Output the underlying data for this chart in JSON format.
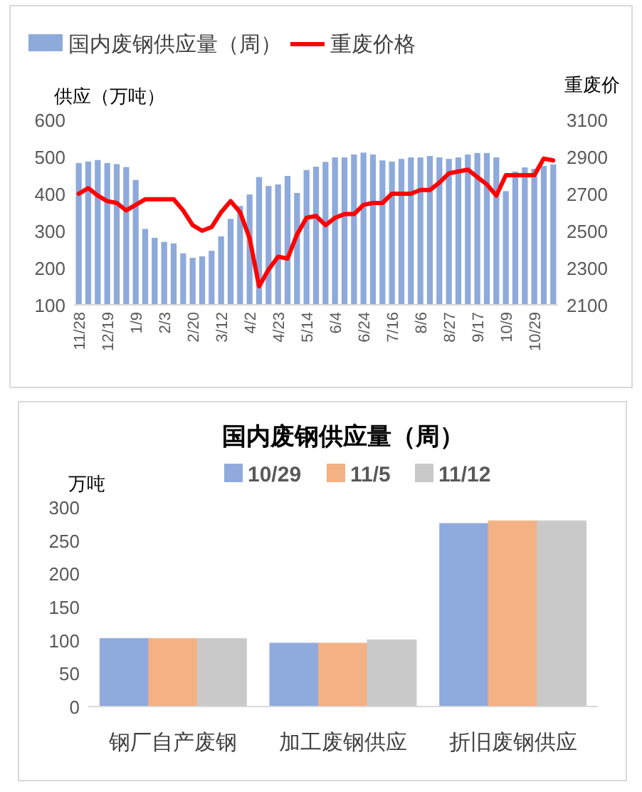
{
  "chart_data": [
    {
      "type": "bar",
      "xlabel": null,
      "ylabel": "供应（万吨）",
      "y2label": "重废价",
      "legend": "top",
      "grid": false,
      "categories": [
        "11/28",
        null,
        null,
        "12/19",
        null,
        null,
        "1/9",
        null,
        null,
        "2/3",
        null,
        null,
        "2/20",
        null,
        null,
        "3/12",
        null,
        null,
        "4/2",
        null,
        null,
        "4/23",
        null,
        null,
        "5/14",
        null,
        null,
        "6/4",
        null,
        null,
        "6/24",
        null,
        null,
        "7/16",
        null,
        null,
        "8/6",
        null,
        null,
        "8/27",
        null,
        null,
        "9/17",
        null,
        null,
        "10/9",
        null,
        null,
        "10/29",
        null,
        null
      ],
      "ylim": [
        100,
        600
      ],
      "yticks": [
        100,
        200,
        300,
        400,
        500,
        600
      ],
      "y2lim": [
        2100,
        3100
      ],
      "y2ticks": [
        2100,
        2300,
        2500,
        2700,
        2900,
        3100
      ],
      "series": [
        {
          "name": "国内废钢供应量（周）",
          "color": "#8eaadb",
          "values": [
            483,
            487,
            491,
            483,
            480,
            472,
            437,
            305,
            281,
            270,
            266,
            239,
            227,
            231,
            246,
            285,
            332,
            367,
            398,
            445,
            421,
            425,
            448,
            402,
            464,
            473,
            486,
            498,
            498,
            506,
            511,
            506,
            490,
            487,
            494,
            498,
            498,
            502,
            498,
            494,
            498,
            506,
            510,
            510,
            498,
            407,
            460,
            471,
            467,
            475,
            479
          ]
        },
        {
          "name": "重废价格",
          "type": "line",
          "axis": "y2",
          "color": "#ff0000",
          "values": [
            2700,
            2730,
            2690,
            2660,
            2650,
            2610,
            2640,
            2670,
            2670,
            2670,
            2670,
            2610,
            2530,
            2500,
            2520,
            2600,
            2660,
            2600,
            2460,
            2200,
            2290,
            2360,
            2350,
            2480,
            2570,
            2580,
            2530,
            2570,
            2590,
            2590,
            2640,
            2650,
            2650,
            2700,
            2700,
            2700,
            2720,
            2720,
            2760,
            2810,
            2820,
            2830,
            2790,
            2750,
            2690,
            2800,
            2800,
            2800,
            2800,
            2890,
            2880
          ]
        }
      ]
    },
    {
      "type": "bar",
      "title": "国内废钢供应量（周）",
      "ylabel": "万吨",
      "legend": "top",
      "grid": false,
      "categories": [
        "钢厂自产废钢",
        "加工废钢供应",
        "折旧废钢供应"
      ],
      "ylim": [
        0,
        300
      ],
      "yticks": [
        0,
        50,
        100,
        150,
        200,
        250,
        300
      ],
      "series": [
        {
          "name": "10/29",
          "color": "#8faadc",
          "values": [
            102,
            95,
            275
          ]
        },
        {
          "name": "11/5",
          "color": "#f4b183",
          "values": [
            102,
            95,
            279
          ]
        },
        {
          "name": "11/12",
          "color": "#c9c9c9",
          "values": [
            102,
            100,
            279
          ]
        }
      ]
    }
  ]
}
